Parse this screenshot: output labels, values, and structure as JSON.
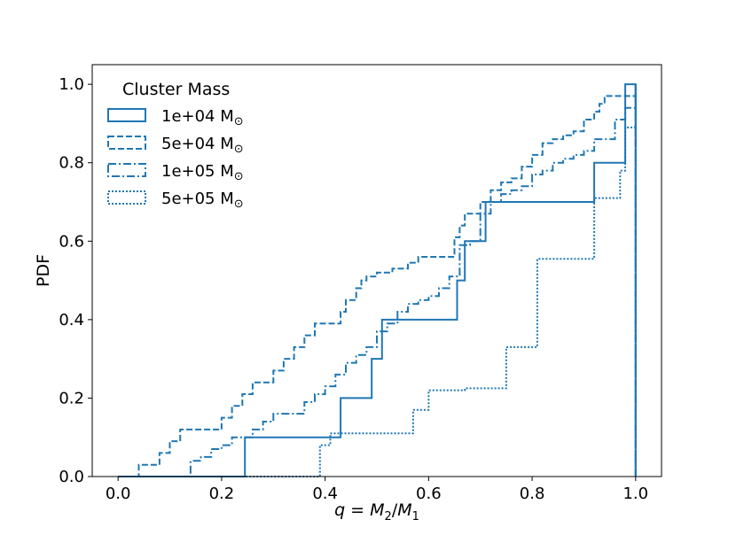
{
  "chart_data": {
    "type": "line",
    "step": true,
    "title": "",
    "xlabel": "q = M2/M1",
    "xlabel_parts": {
      "q": "q",
      "eq": " = ",
      "M": "M",
      "sub2": "2",
      "slash": "/",
      "sub1": "1"
    },
    "ylabel": "PDF",
    "xlim": [
      -0.05,
      1.05
    ],
    "ylim": [
      0.0,
      1.05
    ],
    "xticks": [
      0.0,
      0.2,
      0.4,
      0.6,
      0.8,
      1.0
    ],
    "xtick_labels": [
      "0.0",
      "0.2",
      "0.4",
      "0.6",
      "0.8",
      "1.0"
    ],
    "yticks": [
      0.0,
      0.2,
      0.4,
      0.6,
      0.8,
      1.0
    ],
    "ytick_labels": [
      "0.0",
      "0.2",
      "0.4",
      "0.6",
      "0.8",
      "1.0"
    ],
    "color": "#1f77b4",
    "legend": {
      "title": "Cluster Mass",
      "location": "top-left",
      "sun_symbol": "⊙"
    },
    "series": [
      {
        "name": "1e+04 M⊙",
        "label_main": "1e+04 M",
        "linestyle": "solid",
        "x": [
          0.0,
          0.245,
          0.43,
          0.49,
          0.51,
          0.655,
          0.67,
          0.71,
          0.92,
          0.98,
          1.0,
          1.0
        ],
        "y": [
          0.0,
          0.1,
          0.2,
          0.3,
          0.4,
          0.5,
          0.6,
          0.7,
          0.8,
          1.0,
          1.0,
          0.0
        ]
      },
      {
        "name": "5e+04 M⊙",
        "label_main": "5e+04 M",
        "linestyle": "dashed",
        "x": [
          0.0,
          0.04,
          0.08,
          0.1,
          0.12,
          0.2,
          0.22,
          0.24,
          0.26,
          0.3,
          0.32,
          0.34,
          0.36,
          0.38,
          0.43,
          0.44,
          0.46,
          0.47,
          0.48,
          0.5,
          0.53,
          0.56,
          0.58,
          0.65,
          0.66,
          0.67,
          0.7,
          0.72,
          0.74,
          0.76,
          0.78,
          0.8,
          0.82,
          0.84,
          0.86,
          0.88,
          0.9,
          0.92,
          0.93,
          0.94,
          0.96,
          1.0,
          1.0
        ],
        "y": [
          0.0,
          0.03,
          0.06,
          0.09,
          0.12,
          0.15,
          0.18,
          0.21,
          0.24,
          0.27,
          0.3,
          0.33,
          0.36,
          0.39,
          0.42,
          0.45,
          0.48,
          0.5,
          0.51,
          0.52,
          0.53,
          0.545,
          0.56,
          0.61,
          0.64,
          0.67,
          0.7,
          0.73,
          0.75,
          0.76,
          0.79,
          0.82,
          0.85,
          0.86,
          0.87,
          0.88,
          0.91,
          0.93,
          0.95,
          0.97,
          0.97,
          1.0,
          0.0
        ]
      },
      {
        "name": "1e+05 M⊙",
        "label_main": "1e+05 M",
        "linestyle": "dashdot",
        "x": [
          0.0,
          0.14,
          0.16,
          0.18,
          0.2,
          0.22,
          0.26,
          0.28,
          0.3,
          0.36,
          0.38,
          0.4,
          0.42,
          0.44,
          0.46,
          0.48,
          0.5,
          0.52,
          0.54,
          0.56,
          0.58,
          0.6,
          0.62,
          0.64,
          0.66,
          0.68,
          0.7,
          0.72,
          0.74,
          0.76,
          0.78,
          0.8,
          0.82,
          0.84,
          0.86,
          0.88,
          0.9,
          0.92,
          0.96,
          0.98,
          1.0,
          1.0
        ],
        "y": [
          0.0,
          0.04,
          0.05,
          0.07,
          0.08,
          0.1,
          0.12,
          0.14,
          0.16,
          0.19,
          0.21,
          0.23,
          0.26,
          0.29,
          0.31,
          0.33,
          0.37,
          0.39,
          0.42,
          0.44,
          0.45,
          0.46,
          0.48,
          0.51,
          0.59,
          0.6,
          0.67,
          0.7,
          0.72,
          0.73,
          0.74,
          0.77,
          0.78,
          0.8,
          0.81,
          0.82,
          0.83,
          0.86,
          0.91,
          0.94,
          1.0,
          0.0
        ]
      },
      {
        "name": "5e+05 M⊙",
        "label_main": "5e+05 M",
        "linestyle": "dotted",
        "x": [
          0.0,
          0.39,
          0.41,
          0.57,
          0.6,
          0.67,
          0.75,
          0.81,
          0.89,
          0.92,
          0.97,
          0.98,
          1.0,
          1.0
        ],
        "y": [
          0.0,
          0.08,
          0.11,
          0.17,
          0.22,
          0.225,
          0.33,
          0.555,
          0.555,
          0.71,
          0.78,
          0.89,
          1.0,
          0.0
        ]
      }
    ]
  }
}
